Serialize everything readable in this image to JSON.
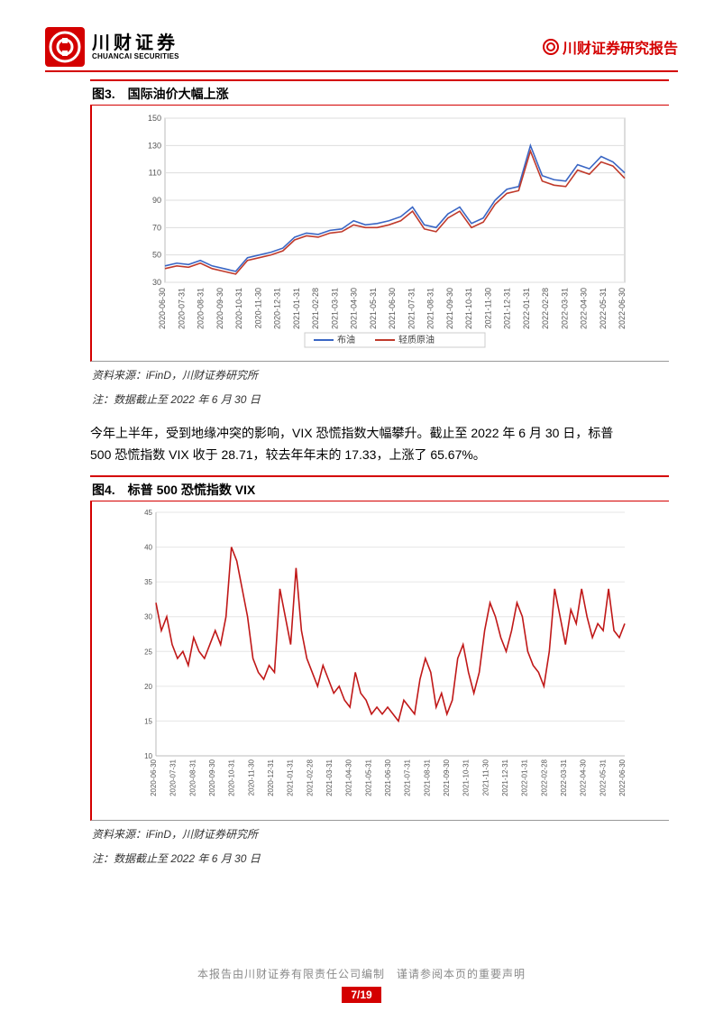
{
  "brand": {
    "cn_name": "川财证券",
    "en_name": "CHUANCAI SECURITIES",
    "report_label": "川财证券研究报告",
    "logo_bg": "#d40000",
    "logo_fg": "#ffffff"
  },
  "figure3": {
    "label": "图3.　国际油价大幅上涨",
    "type": "line",
    "ylim": [
      30,
      150
    ],
    "ytick_step": 20,
    "yticks": [
      30,
      50,
      70,
      90,
      110,
      130,
      150
    ],
    "xlabels": [
      "2020-06-30",
      "2020-07-31",
      "2020-08-31",
      "2020-09-30",
      "2020-10-31",
      "2020-11-30",
      "2020-12-31",
      "2021-01-31",
      "2021-02-28",
      "2021-03-31",
      "2021-04-30",
      "2021-05-31",
      "2021-06-30",
      "2021-07-31",
      "2021-08-31",
      "2021-09-30",
      "2021-10-31",
      "2021-11-30",
      "2021-12-31",
      "2022-01-31",
      "2022-02-28",
      "2022-03-31",
      "2022-04-30",
      "2022-05-31",
      "2022-06-30"
    ],
    "series": [
      {
        "name": "布油",
        "color": "#3a66c4",
        "values": [
          42,
          44,
          43,
          46,
          42,
          40,
          38,
          48,
          50,
          52,
          55,
          63,
          66,
          65,
          68,
          69,
          75,
          72,
          73,
          75,
          78,
          85,
          72,
          70,
          80,
          85,
          73,
          77,
          90,
          98,
          100,
          130,
          108,
          105,
          104,
          116,
          113,
          122,
          118,
          110
        ]
      },
      {
        "name": "轻质原油",
        "color": "#c03a2b",
        "values": [
          40,
          42,
          41,
          44,
          40,
          38,
          36,
          46,
          48,
          50,
          53,
          61,
          64,
          63,
          66,
          67,
          72,
          70,
          70,
          72,
          75,
          82,
          69,
          67,
          77,
          82,
          70,
          74,
          87,
          95,
          97,
          126,
          104,
          101,
          100,
          112,
          109,
          118,
          115,
          106
        ]
      }
    ],
    "legend_labels": [
      "布油",
      "轻质原油"
    ],
    "source": "资料来源：iFinD，川财证券研究所",
    "note": "注：数据截止至 2022 年 6 月 30 日",
    "background_color": "#ffffff",
    "grid_color": "#dddddd",
    "line_width": 1.6,
    "label_fontsize": 9
  },
  "paragraph": "今年上半年，受到地缘冲突的影响，VIX 恐慌指数大幅攀升。截止至 2022 年 6 月 30 日，标普 500 恐慌指数 VIX 收于 28.71，较去年年末的 17.33，上涨了 65.67%。",
  "figure4": {
    "label": "图4.　标普 500 恐慌指数 VIX",
    "type": "line",
    "ylim": [
      10,
      45
    ],
    "ytick_step": 5,
    "yticks": [
      10,
      15,
      20,
      25,
      30,
      35,
      40,
      45
    ],
    "xlabels": [
      "2020-06-30",
      "2020-07-31",
      "2020-08-31",
      "2020-09-30",
      "2020-10-31",
      "2020-11-30",
      "2020-12-31",
      "2021-01-31",
      "2021-02-28",
      "2021-03-31",
      "2021-04-30",
      "2021-05-31",
      "2021-06-30",
      "2021-07-31",
      "2021-08-31",
      "2021-09-30",
      "2021-10-31",
      "2021-11-30",
      "2021-12-31",
      "2022-01-31",
      "2022-02-28",
      "2022-03-31",
      "2022-04-30",
      "2022-05-31",
      "2022-06-30"
    ],
    "series": [
      {
        "name": "VIX",
        "color": "#c01818",
        "values": [
          32,
          28,
          30,
          26,
          24,
          25,
          23,
          27,
          25,
          24,
          26,
          28,
          26,
          30,
          40,
          38,
          34,
          30,
          24,
          22,
          21,
          23,
          22,
          34,
          30,
          26,
          37,
          28,
          24,
          22,
          20,
          23,
          21,
          19,
          20,
          18,
          17,
          22,
          19,
          18,
          16,
          17,
          16,
          17,
          16,
          15,
          18,
          17,
          16,
          21,
          24,
          22,
          17,
          19,
          16,
          18,
          24,
          26,
          22,
          19,
          22,
          28,
          32,
          30,
          27,
          25,
          28,
          32,
          30,
          25,
          23,
          22,
          20,
          25,
          34,
          30,
          26,
          31,
          29,
          34,
          30,
          27,
          29,
          28,
          34,
          28,
          27,
          29
        ]
      }
    ],
    "source": "资料来源：iFinD，川财证券研究所",
    "note": "注：数据截止至 2022 年 6 月 30 日",
    "background_color": "#ffffff",
    "grid_color": "#e6e6e6",
    "line_width": 1.4,
    "label_fontsize": 8
  },
  "footer": {
    "disclaimer": "本报告由川财证券有限责任公司编制　谨请参阅本页的重要声明",
    "page": "7/19"
  },
  "colors": {
    "brand_red": "#d40000",
    "text_gray": "#8a8a8a"
  }
}
